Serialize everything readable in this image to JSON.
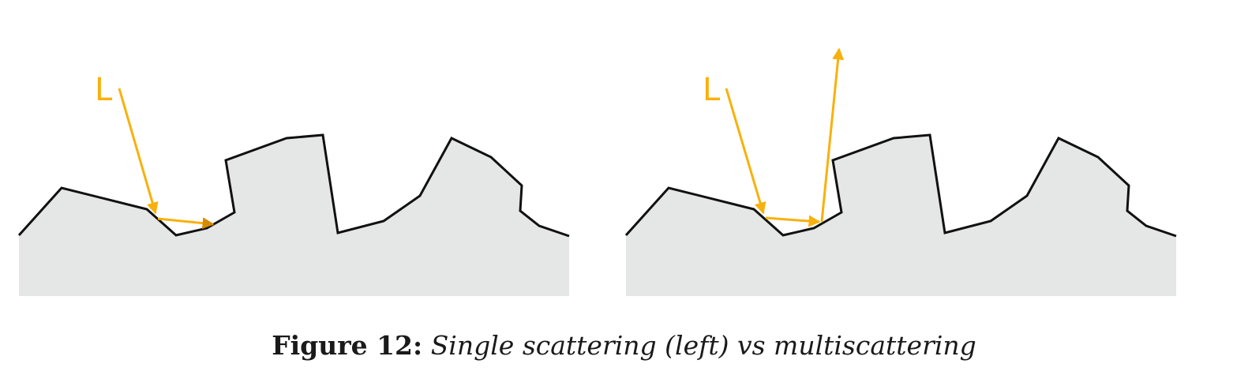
{
  "caption": {
    "label": "Figure 12:",
    "text": "Single scattering (left) vs multiscattering"
  },
  "panels": [
    {
      "light_label": "L"
    },
    {
      "light_label": "L"
    }
  ],
  "colors": {
    "surface_fill": "#e5e6e6",
    "surface_outline": "#111111",
    "ray": "#f8b10c",
    "ray_absorbed": "#d48b05"
  }
}
